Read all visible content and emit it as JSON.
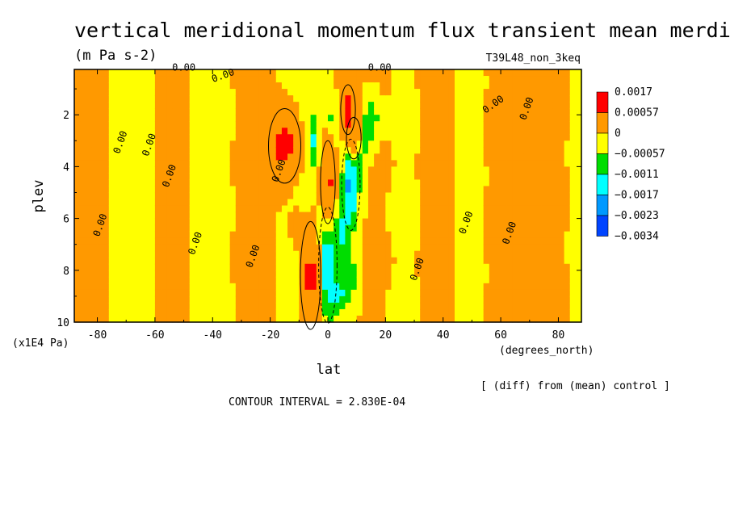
{
  "chart_data": {
    "type": "heatmap",
    "title": "vertical meridional momentum flux transient mean merdional",
    "units": "(m Pa s-2)",
    "run_label": "T39L48_non_3keq",
    "xlabel": "lat",
    "x_units": "(degrees_north)",
    "ylabel": "plev",
    "y_units": "(x1E4 Pa)",
    "xlim": [
      -88,
      88
    ],
    "ylim": [
      10,
      0.25
    ],
    "x_ticks": [
      -80,
      -60,
      -40,
      -20,
      0,
      20,
      40,
      60,
      80
    ],
    "x_tick_labels": [
      "-80",
      "-60",
      "-40",
      "-20",
      "0",
      "20",
      "40",
      "60",
      "80"
    ],
    "y_ticks": [
      2,
      4,
      6,
      8,
      10
    ],
    "y_tick_labels": [
      "2",
      "4",
      "6",
      "8",
      "10"
    ],
    "legend": {
      "position": "right",
      "labels": [
        "0.0017",
        "0.00057",
        "0",
        "−0.00057",
        "−0.0011",
        "−0.0017",
        "−0.0023",
        "−0.0034"
      ],
      "colors": [
        "#ff0000",
        "#ff9900",
        "#ffff00",
        "#00dd00",
        "#00ffff",
        "#0099ff",
        "#0044ff"
      ]
    },
    "contour_labels": [
      "0.00",
      "0.00",
      "0.00",
      "0.00",
      "0.00",
      "0.00",
      "0.00",
      "0.00",
      "0.00",
      "0.00",
      "0.00",
      "0.00",
      "0.00",
      "0.00",
      "0.00"
    ],
    "contour_interval_text": "CONTOUR INTERVAL = 2.830E-04",
    "diff_note": "[ (diff) from (mean) control ]",
    "level_thresholds": [
      0.0017,
      0.00057,
      0,
      -0.00057,
      -0.0011,
      -0.0017
    ],
    "features": [
      {
        "lat": -15,
        "p": 3.2,
        "amp": 0.0024,
        "slat": 3.5,
        "sp": 0.9
      },
      {
        "lat": -25,
        "p": 4.8,
        "amp": 0.0009,
        "slat": 1.6,
        "sp": 0.6
      },
      {
        "lat": -6,
        "p": 8.2,
        "amp": 0.0024,
        "slat": 2.2,
        "sp": 1.3
      },
      {
        "lat": 0,
        "p": 4.6,
        "amp": 0.0023,
        "slat": 1.6,
        "sp": 1.0
      },
      {
        "lat": 7,
        "p": 1.8,
        "amp": 0.0022,
        "slat": 1.6,
        "sp": 0.6
      },
      {
        "lat": 9,
        "p": 2.9,
        "amp": 0.0016,
        "slat": 1.6,
        "sp": 0.5
      },
      {
        "lat": -11,
        "p": 6.3,
        "amp": 0.0008,
        "slat": 1.5,
        "sp": 0.5
      },
      {
        "lat": -5,
        "p": 3.0,
        "amp": -0.001,
        "slat": 1.5,
        "sp": 0.6
      },
      {
        "lat": 0,
        "p": 7.8,
        "amp": -0.0015,
        "slat": 2.0,
        "sp": 1.4
      },
      {
        "lat": 8,
        "p": 4.7,
        "amp": -0.002,
        "slat": 2.0,
        "sp": 1.1
      },
      {
        "lat": 5,
        "p": 6.6,
        "amp": -0.001,
        "slat": 1.8,
        "sp": 0.9
      },
      {
        "lat": 4,
        "p": 9.0,
        "amp": -0.001,
        "slat": 1.8,
        "sp": 0.6
      },
      {
        "lat": 15,
        "p": 2.2,
        "amp": -0.001,
        "slat": 2.0,
        "sp": 0.7
      },
      {
        "lat": 12,
        "p": 3.2,
        "amp": -0.0008,
        "slat": 1.6,
        "sp": 0.6
      },
      {
        "lat": 2,
        "p": 2.2,
        "amp": -0.0008,
        "slat": 1.5,
        "sp": 0.5
      },
      {
        "lat": 8,
        "p": 8.3,
        "amp": -0.0009,
        "slat": 2.0,
        "sp": 0.8
      }
    ],
    "orange_bands": [
      {
        "from": -88,
        "to": -78,
        "level": 0.0008
      },
      {
        "from": -60,
        "to": -50,
        "level": 0.0004
      },
      {
        "from": -35,
        "to": -25,
        "level": 0.0005
      },
      {
        "from": 12,
        "to": 28,
        "level": 0.0004
      },
      {
        "from": 32,
        "to": 45,
        "level": 0.0005
      },
      {
        "from": 50,
        "to": 70,
        "level": 0.0006
      },
      {
        "from": 73,
        "to": 88,
        "level": 0.0005
      }
    ]
  }
}
